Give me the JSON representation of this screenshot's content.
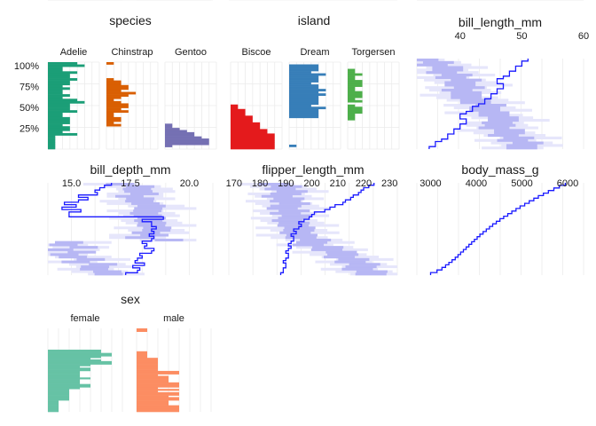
{
  "chart_data": [
    {
      "type": "bar",
      "title": "species",
      "y_axis_ticks": [
        "100%",
        "75%",
        "50%",
        "25%"
      ],
      "y_axis_tick_values": [
        1.0,
        0.75,
        0.5,
        0.25
      ],
      "facets": [
        {
          "name": "Adelie",
          "color": "#1b9e77",
          "values": [
            4,
            5,
            2,
            2,
            4,
            3,
            3,
            4,
            3,
            3,
            2,
            3,
            2,
            2,
            3,
            2,
            4,
            5,
            3,
            3,
            3,
            4,
            2,
            2,
            3,
            3,
            3,
            2,
            3,
            3,
            2,
            4,
            1,
            1,
            1,
            1,
            1,
            1
          ]
        },
        {
          "name": "Chinstrap",
          "color": "#d95f02",
          "values": [
            1,
            0,
            0,
            0,
            0,
            0,
            0,
            1,
            2,
            2,
            3,
            3,
            2,
            4,
            3,
            2,
            1,
            2,
            3,
            3,
            2,
            3,
            1,
            1,
            2,
            2,
            1,
            2,
            0,
            0,
            0,
            0,
            0,
            0,
            0,
            0,
            0,
            0
          ]
        },
        {
          "name": "Gentoo",
          "color": "#7570b3",
          "values": [
            0,
            0,
            0,
            0,
            0,
            0,
            0,
            0,
            0,
            0,
            0,
            0,
            0,
            0,
            0,
            0,
            0,
            0,
            0,
            0,
            0,
            0,
            0,
            0,
            0,
            0,
            0,
            0,
            0,
            1,
            1,
            2,
            3,
            4,
            4,
            5,
            6,
            6,
            6,
            1,
            0
          ]
        }
      ]
    },
    {
      "type": "bar",
      "title": "island",
      "facets": [
        {
          "name": "Biscoe",
          "color": "#e41a1c",
          "values": [
            0,
            0,
            0,
            0,
            0,
            0,
            0,
            0,
            0,
            0,
            0,
            0,
            0,
            0,
            0,
            0,
            0,
            0,
            0,
            1,
            1,
            2,
            2,
            2,
            3,
            3,
            3,
            4,
            4,
            4,
            5,
            5,
            6,
            6,
            6,
            6,
            6,
            6,
            6
          ]
        },
        {
          "name": "Dream",
          "color": "#377eb8",
          "values": [
            0,
            4,
            4,
            4,
            3,
            5,
            4,
            4,
            4,
            3,
            4,
            4,
            5,
            4,
            5,
            4,
            4,
            4,
            4,
            3,
            5,
            4,
            4,
            4,
            4,
            0,
            0,
            0,
            0,
            0,
            0,
            0,
            0,
            0,
            0,
            0,
            0,
            1,
            0
          ]
        },
        {
          "name": "Torgersen",
          "color": "#4daf4a",
          "values": [
            0,
            0,
            0,
            1,
            1,
            2,
            1,
            1,
            2,
            2,
            2,
            1,
            1,
            2,
            2,
            2,
            1,
            2,
            0,
            1,
            2,
            2,
            2,
            1,
            1,
            1,
            0,
            0,
            0,
            0,
            0,
            0,
            0,
            0,
            0,
            0,
            0,
            0,
            0
          ]
        }
      ]
    },
    {
      "type": "line",
      "title": "bill_length_mm",
      "x_ticks": [
        40,
        50,
        60
      ],
      "xlim": [
        33,
        60
      ],
      "line_x": [
        35,
        36,
        36,
        37,
        38,
        38,
        39,
        39,
        40,
        40,
        41,
        41,
        40,
        40,
        41,
        42,
        42,
        43,
        44,
        44,
        45,
        45,
        46,
        46,
        47,
        47,
        46,
        46,
        47,
        48,
        48,
        49,
        49,
        50,
        50,
        51
      ],
      "band_inner_halfwidth": 2.5,
      "band_outer_halfwidth": 5
    },
    {
      "type": "line",
      "title": "bill_depth_mm",
      "x_ticks": [
        "15.0",
        "17.5",
        "20.0"
      ],
      "x_tick_values": [
        15.0,
        17.5,
        20.0
      ],
      "xlim": [
        14.0,
        21.0
      ],
      "line_x": [
        17.3,
        17.8,
        17.9,
        17.6,
        18.1,
        17.7,
        17.8,
        18.0,
        17.9,
        18.4,
        18.5,
        18.1,
        18.2,
        18.0,
        18.4,
        18.5,
        18.3,
        18.5,
        18.4,
        18.6,
        18.4,
        18.4,
        18.0,
        18.9,
        14.9,
        14.9,
        15.4,
        14.6,
        15.2,
        14.7,
        15.3,
        15.7,
        15.3,
        16.1,
        16.0,
        16.2,
        16.4,
        16.7
      ],
      "band_inner_halfwidth": 0.6,
      "band_outer_halfwidth": 1.2
    },
    {
      "type": "line",
      "title": "flipper_length_mm",
      "x_ticks": [
        170,
        180,
        190,
        200,
        210,
        220,
        230
      ],
      "xlim": [
        168,
        233
      ],
      "line_x": [
        188,
        189,
        189,
        190,
        190,
        189,
        190,
        191,
        191,
        190,
        191,
        192,
        191,
        192,
        193,
        193,
        192,
        194,
        193,
        195,
        196,
        195,
        197,
        199,
        200,
        201,
        205,
        207,
        209,
        212,
        213,
        215,
        216,
        218,
        219,
        220,
        222,
        224
      ],
      "band_inner_halfwidth": 6,
      "band_outer_halfwidth": 11
    },
    {
      "type": "line",
      "title": "body_mass_g",
      "x_ticks": [
        3000,
        4000,
        5000,
        6000
      ],
      "xlim": [
        2700,
        6350
      ],
      "line_x": [
        3000,
        3140,
        3250,
        3330,
        3400,
        3470,
        3540,
        3600,
        3660,
        3720,
        3780,
        3840,
        3900,
        3960,
        4020,
        4080,
        4150,
        4220,
        4290,
        4360,
        4440,
        4520,
        4600,
        4690,
        4780,
        4870,
        4960,
        5060,
        5160,
        5260,
        5360,
        5470,
        5580,
        5700,
        5820,
        5950
      ],
      "band_inner_halfwidth": 0,
      "band_outer_halfwidth": 0
    },
    {
      "type": "bar",
      "title": "sex",
      "facets": [
        {
          "name": "female",
          "color": "#66c2a5",
          "values": [
            0,
            0,
            0,
            0,
            0,
            0,
            0,
            0,
            0,
            0,
            0,
            0,
            0,
            5,
            5,
            6,
            6,
            5,
            4,
            5,
            6,
            6,
            4,
            3,
            4,
            4,
            3,
            3,
            3,
            3,
            4,
            3,
            3,
            3,
            4,
            4,
            3,
            2,
            2,
            2,
            2,
            2,
            2,
            2,
            1,
            1,
            1,
            1,
            1,
            1,
            1
          ]
        },
        {
          "name": "male",
          "color": "#fc8d62",
          "values": [
            1,
            1,
            0,
            0,
            0,
            0,
            0,
            0,
            0,
            0,
            0,
            0,
            0,
            0,
            1,
            1,
            1,
            1,
            2,
            2,
            2,
            2,
            2,
            2,
            2,
            2,
            4,
            4,
            2,
            3,
            3,
            3,
            3,
            4,
            4,
            4,
            2,
            4,
            2,
            4,
            4,
            3,
            4,
            4,
            3,
            3,
            3,
            4,
            4,
            4,
            4
          ]
        }
      ]
    }
  ]
}
